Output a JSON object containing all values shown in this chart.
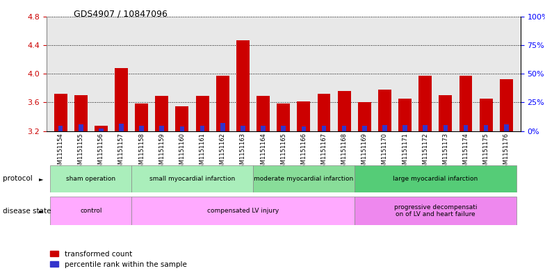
{
  "title": "GDS4907 / 10847096",
  "samples": [
    "GSM1151154",
    "GSM1151155",
    "GSM1151156",
    "GSM1151157",
    "GSM1151158",
    "GSM1151159",
    "GSM1151160",
    "GSM1151161",
    "GSM1151162",
    "GSM1151163",
    "GSM1151164",
    "GSM1151165",
    "GSM1151166",
    "GSM1151167",
    "GSM1151168",
    "GSM1151169",
    "GSM1151170",
    "GSM1151171",
    "GSM1151172",
    "GSM1151173",
    "GSM1151174",
    "GSM1151175",
    "GSM1151176"
  ],
  "red_values": [
    3.72,
    3.7,
    3.27,
    4.08,
    3.58,
    3.69,
    3.55,
    3.69,
    3.97,
    4.47,
    3.69,
    3.58,
    3.61,
    3.72,
    3.76,
    3.6,
    3.78,
    3.65,
    3.97,
    3.7,
    3.97,
    3.65,
    3.92
  ],
  "blue_heights": [
    0.07,
    0.09,
    0.04,
    0.1,
    0.07,
    0.07,
    0.06,
    0.07,
    0.11,
    0.07,
    0.07,
    0.07,
    0.06,
    0.07,
    0.07,
    0.07,
    0.08,
    0.08,
    0.08,
    0.08,
    0.08,
    0.08,
    0.09
  ],
  "ylim": [
    3.2,
    4.8
  ],
  "yticks_left": [
    3.2,
    3.6,
    4.0,
    4.4,
    4.8
  ],
  "red_color": "#cc0000",
  "blue_color": "#3333cc",
  "bar_width": 0.65,
  "protocol_groups": [
    {
      "label": "sham operation",
      "start": 0,
      "end": 3,
      "color": "#aaeebb"
    },
    {
      "label": "small myocardial infarction",
      "start": 4,
      "end": 9,
      "color": "#aaeebb"
    },
    {
      "label": "moderate myocardial infarction",
      "start": 10,
      "end": 14,
      "color": "#88dd99"
    },
    {
      "label": "large myocardial infarction",
      "start": 15,
      "end": 22,
      "color": "#55cc77"
    }
  ],
  "disease_groups": [
    {
      "label": "control",
      "start": 0,
      "end": 3,
      "color": "#ffaaff"
    },
    {
      "label": "compensated LV injury",
      "start": 4,
      "end": 14,
      "color": "#ffaaff"
    },
    {
      "label": "progressive decompensati\non of LV and heart failure",
      "start": 15,
      "end": 22,
      "color": "#ee88ee"
    }
  ]
}
